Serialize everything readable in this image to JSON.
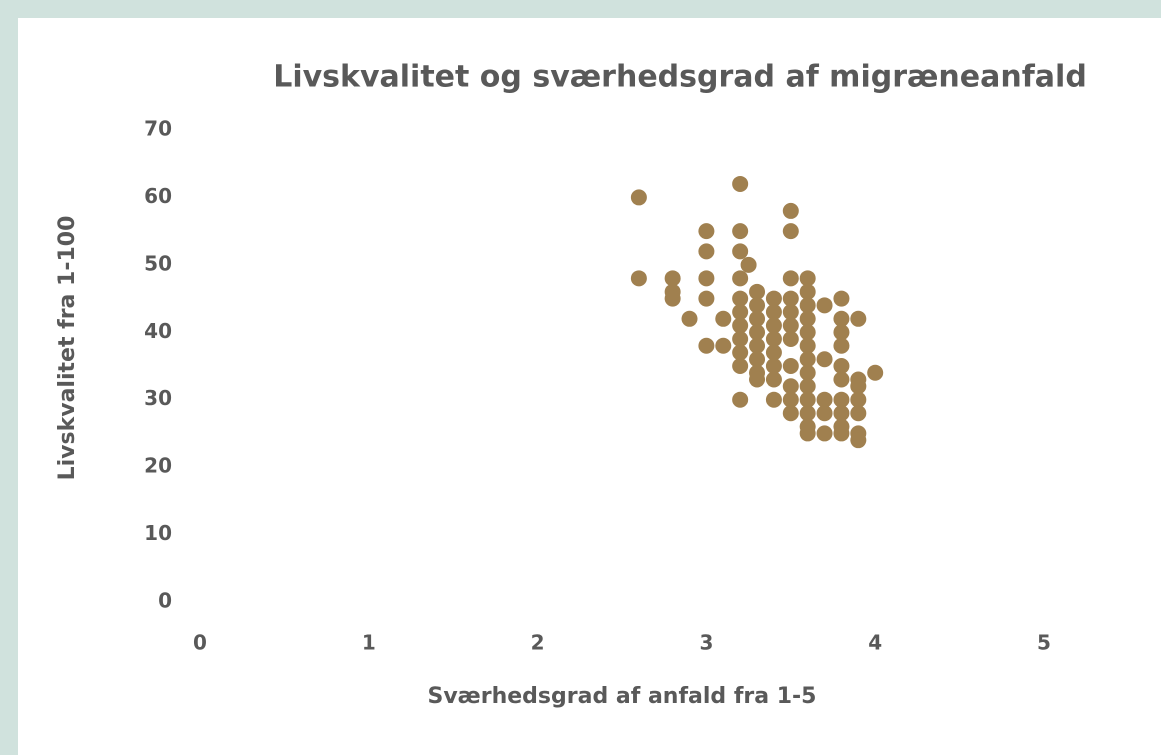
{
  "chart_data": {
    "type": "scatter",
    "title": "Livskvalitet og sværhedsgrad af migræneanfald",
    "x_label": "Sværhedsgrad af anfald fra 1-5",
    "y_label": "Livskvalitet fra 1-100",
    "color": "#a0804f",
    "grid": false,
    "xlim": [
      0,
      5
    ],
    "xticks": [
      0,
      1,
      2,
      3,
      4,
      5
    ],
    "ylim": [
      0,
      70
    ],
    "yticks": [
      0,
      10,
      20,
      30,
      40,
      50,
      60,
      70
    ],
    "x": [
      2.6,
      2.6,
      2.8,
      2.8,
      2.8,
      2.9,
      3.0,
      3.0,
      3.0,
      3.0,
      3.0,
      3.1,
      3.1,
      3.2,
      3.2,
      3.2,
      3.2,
      3.2,
      3.2,
      3.2,
      3.2,
      3.2,
      3.2,
      3.2,
      3.25,
      3.3,
      3.3,
      3.3,
      3.3,
      3.3,
      3.3,
      3.3,
      3.3,
      3.4,
      3.4,
      3.4,
      3.4,
      3.4,
      3.4,
      3.4,
      3.4,
      3.5,
      3.5,
      3.5,
      3.5,
      3.5,
      3.5,
      3.5,
      3.5,
      3.5,
      3.5,
      3.5,
      3.6,
      3.6,
      3.6,
      3.6,
      3.6,
      3.6,
      3.6,
      3.6,
      3.6,
      3.6,
      3.6,
      3.6,
      3.6,
      3.7,
      3.7,
      3.7,
      3.7,
      3.7,
      3.8,
      3.8,
      3.8,
      3.8,
      3.8,
      3.8,
      3.8,
      3.8,
      3.8,
      3.8,
      3.9,
      3.9,
      3.9,
      3.9,
      3.9,
      3.9,
      3.9,
      4.0
    ],
    "values": [
      60,
      48,
      48,
      46,
      45,
      42,
      55,
      52,
      48,
      45,
      38,
      42,
      38,
      62,
      55,
      52,
      48,
      45,
      43,
      41,
      39,
      37,
      35,
      30,
      50,
      46,
      44,
      42,
      40,
      38,
      36,
      34,
      33,
      45,
      43,
      41,
      39,
      37,
      35,
      33,
      30,
      58,
      55,
      48,
      45,
      43,
      41,
      39,
      35,
      32,
      30,
      28,
      48,
      46,
      44,
      42,
      40,
      38,
      36,
      34,
      32,
      30,
      28,
      26,
      25,
      44,
      36,
      30,
      28,
      25,
      45,
      42,
      40,
      38,
      35,
      33,
      30,
      28,
      26,
      25,
      42,
      33,
      32,
      30,
      28,
      25,
      24,
      34
    ]
  }
}
